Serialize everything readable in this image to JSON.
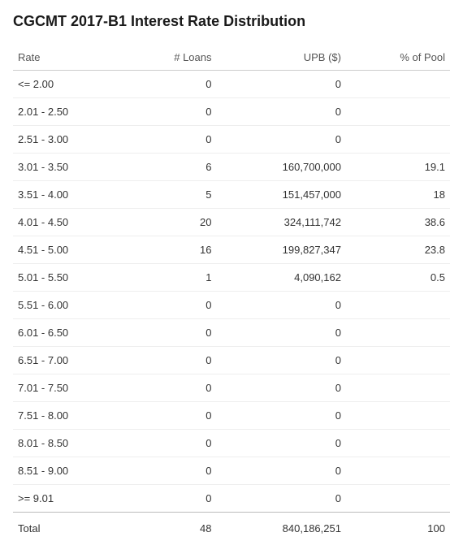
{
  "title": "CGCMT 2017-B1 Interest Rate Distribution",
  "columns": [
    "Rate",
    "# Loans",
    "UPB ($)",
    "% of Pool"
  ],
  "rows": [
    {
      "rate": "<= 2.00",
      "loans": "0",
      "upb": "0",
      "pct": ""
    },
    {
      "rate": "2.01 - 2.50",
      "loans": "0",
      "upb": "0",
      "pct": ""
    },
    {
      "rate": "2.51 - 3.00",
      "loans": "0",
      "upb": "0",
      "pct": ""
    },
    {
      "rate": "3.01 - 3.50",
      "loans": "6",
      "upb": "160,700,000",
      "pct": "19.1"
    },
    {
      "rate": "3.51 - 4.00",
      "loans": "5",
      "upb": "151,457,000",
      "pct": "18"
    },
    {
      "rate": "4.01 - 4.50",
      "loans": "20",
      "upb": "324,111,742",
      "pct": "38.6"
    },
    {
      "rate": "4.51 - 5.00",
      "loans": "16",
      "upb": "199,827,347",
      "pct": "23.8"
    },
    {
      "rate": "5.01 - 5.50",
      "loans": "1",
      "upb": "4,090,162",
      "pct": "0.5"
    },
    {
      "rate": "5.51 - 6.00",
      "loans": "0",
      "upb": "0",
      "pct": ""
    },
    {
      "rate": "6.01 - 6.50",
      "loans": "0",
      "upb": "0",
      "pct": ""
    },
    {
      "rate": "6.51 - 7.00",
      "loans": "0",
      "upb": "0",
      "pct": ""
    },
    {
      "rate": "7.01 - 7.50",
      "loans": "0",
      "upb": "0",
      "pct": ""
    },
    {
      "rate": "7.51 - 8.00",
      "loans": "0",
      "upb": "0",
      "pct": ""
    },
    {
      "rate": "8.01 - 8.50",
      "loans": "0",
      "upb": "0",
      "pct": ""
    },
    {
      "rate": "8.51 - 9.00",
      "loans": "0",
      "upb": "0",
      "pct": ""
    },
    {
      "rate": ">= 9.01",
      "loans": "0",
      "upb": "0",
      "pct": ""
    }
  ],
  "total": {
    "label": "Total",
    "loans": "48",
    "upb": "840,186,251",
    "pct": "100"
  }
}
